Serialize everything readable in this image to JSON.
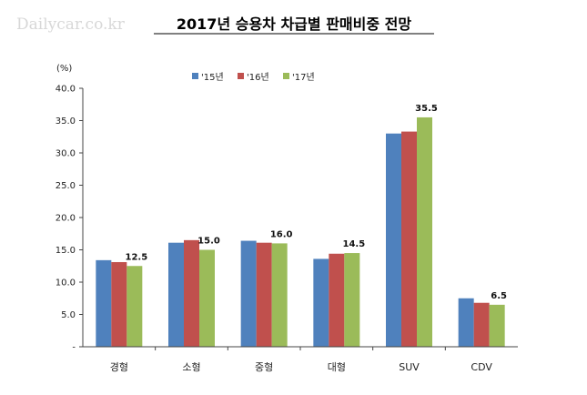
{
  "watermark": "Dailycar.co.kr",
  "chart_data": {
    "type": "bar",
    "title": "2017년 승용차 차급별 판매비중 전망",
    "ylabel": "(%)",
    "xlabel": "",
    "ylim": [
      0,
      40
    ],
    "yticks": [
      "-",
      "5.0",
      "10.0",
      "15.0",
      "20.0",
      "25.0",
      "30.0",
      "35.0",
      "40.0"
    ],
    "grid": false,
    "legend_position": "top-center",
    "categories": [
      "경형",
      "소형",
      "중형",
      "대형",
      "SUV",
      "CDV"
    ],
    "series": [
      {
        "name": "'15년",
        "color": "#4f81bd",
        "values": [
          13.4,
          16.1,
          16.4,
          13.6,
          33.0,
          7.5
        ]
      },
      {
        "name": "'16년",
        "color": "#c0504d",
        "values": [
          13.1,
          16.5,
          16.1,
          14.4,
          33.3,
          6.8
        ]
      },
      {
        "name": "'17년",
        "color": "#9bbb59",
        "values": [
          12.5,
          15.0,
          16.0,
          14.5,
          35.5,
          6.5
        ]
      }
    ],
    "data_labels": {
      "series_index": 2,
      "text": [
        "12.5",
        "15.0",
        "16.0",
        "14.5",
        "35.5",
        "6.5"
      ]
    }
  }
}
